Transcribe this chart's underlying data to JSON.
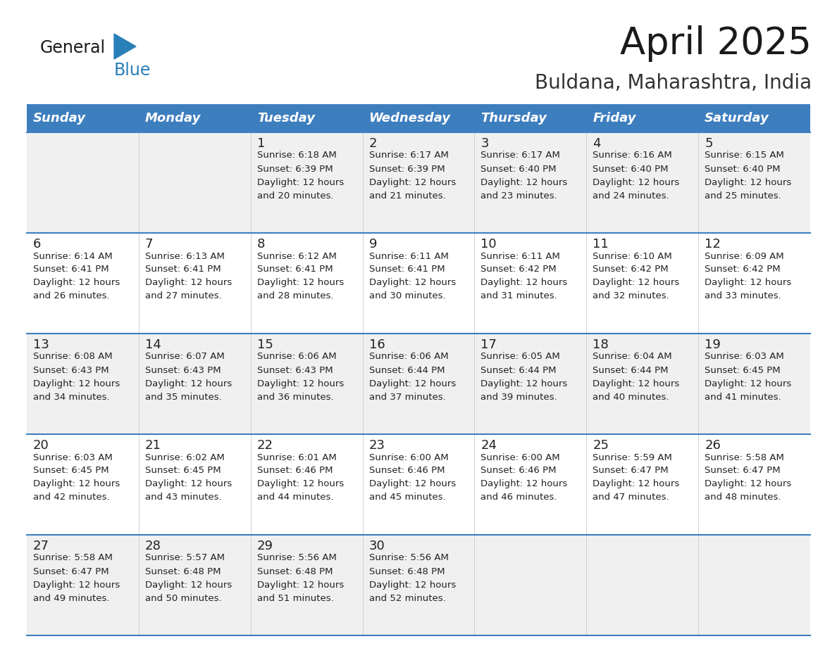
{
  "title": "April 2025",
  "subtitle": "Buldana, Maharashtra, India",
  "header_bg": "#3d7ebf",
  "header_text_color": "#ffffff",
  "row_bg_odd": "#f0f0f0",
  "row_bg_even": "#ffffff",
  "cell_text_color": "#222222",
  "days_of_week": [
    "Sunday",
    "Monday",
    "Tuesday",
    "Wednesday",
    "Thursday",
    "Friday",
    "Saturday"
  ],
  "calendar_data": [
    [
      {
        "day": "",
        "sunrise": "",
        "sunset": "",
        "daylight_min": 0
      },
      {
        "day": "",
        "sunrise": "",
        "sunset": "",
        "daylight_min": 0
      },
      {
        "day": "1",
        "sunrise": "6:18 AM",
        "sunset": "6:39 PM",
        "daylight_min": 20
      },
      {
        "day": "2",
        "sunrise": "6:17 AM",
        "sunset": "6:39 PM",
        "daylight_min": 21
      },
      {
        "day": "3",
        "sunrise": "6:17 AM",
        "sunset": "6:40 PM",
        "daylight_min": 23
      },
      {
        "day": "4",
        "sunrise": "6:16 AM",
        "sunset": "6:40 PM",
        "daylight_min": 24
      },
      {
        "day": "5",
        "sunrise": "6:15 AM",
        "sunset": "6:40 PM",
        "daylight_min": 25
      }
    ],
    [
      {
        "day": "6",
        "sunrise": "6:14 AM",
        "sunset": "6:41 PM",
        "daylight_min": 26
      },
      {
        "day": "7",
        "sunrise": "6:13 AM",
        "sunset": "6:41 PM",
        "daylight_min": 27
      },
      {
        "day": "8",
        "sunrise": "6:12 AM",
        "sunset": "6:41 PM",
        "daylight_min": 28
      },
      {
        "day": "9",
        "sunrise": "6:11 AM",
        "sunset": "6:41 PM",
        "daylight_min": 30
      },
      {
        "day": "10",
        "sunrise": "6:11 AM",
        "sunset": "6:42 PM",
        "daylight_min": 31
      },
      {
        "day": "11",
        "sunrise": "6:10 AM",
        "sunset": "6:42 PM",
        "daylight_min": 32
      },
      {
        "day": "12",
        "sunrise": "6:09 AM",
        "sunset": "6:42 PM",
        "daylight_min": 33
      }
    ],
    [
      {
        "day": "13",
        "sunrise": "6:08 AM",
        "sunset": "6:43 PM",
        "daylight_min": 34
      },
      {
        "day": "14",
        "sunrise": "6:07 AM",
        "sunset": "6:43 PM",
        "daylight_min": 35
      },
      {
        "day": "15",
        "sunrise": "6:06 AM",
        "sunset": "6:43 PM",
        "daylight_min": 36
      },
      {
        "day": "16",
        "sunrise": "6:06 AM",
        "sunset": "6:44 PM",
        "daylight_min": 37
      },
      {
        "day": "17",
        "sunrise": "6:05 AM",
        "sunset": "6:44 PM",
        "daylight_min": 39
      },
      {
        "day": "18",
        "sunrise": "6:04 AM",
        "sunset": "6:44 PM",
        "daylight_min": 40
      },
      {
        "day": "19",
        "sunrise": "6:03 AM",
        "sunset": "6:45 PM",
        "daylight_min": 41
      }
    ],
    [
      {
        "day": "20",
        "sunrise": "6:03 AM",
        "sunset": "6:45 PM",
        "daylight_min": 42
      },
      {
        "day": "21",
        "sunrise": "6:02 AM",
        "sunset": "6:45 PM",
        "daylight_min": 43
      },
      {
        "day": "22",
        "sunrise": "6:01 AM",
        "sunset": "6:46 PM",
        "daylight_min": 44
      },
      {
        "day": "23",
        "sunrise": "6:00 AM",
        "sunset": "6:46 PM",
        "daylight_min": 45
      },
      {
        "day": "24",
        "sunrise": "6:00 AM",
        "sunset": "6:46 PM",
        "daylight_min": 46
      },
      {
        "day": "25",
        "sunrise": "5:59 AM",
        "sunset": "6:47 PM",
        "daylight_min": 47
      },
      {
        "day": "26",
        "sunrise": "5:58 AM",
        "sunset": "6:47 PM",
        "daylight_min": 48
      }
    ],
    [
      {
        "day": "27",
        "sunrise": "5:58 AM",
        "sunset": "6:47 PM",
        "daylight_min": 49
      },
      {
        "day": "28",
        "sunrise": "5:57 AM",
        "sunset": "6:48 PM",
        "daylight_min": 50
      },
      {
        "day": "29",
        "sunrise": "5:56 AM",
        "sunset": "6:48 PM",
        "daylight_min": 51
      },
      {
        "day": "30",
        "sunrise": "5:56 AM",
        "sunset": "6:48 PM",
        "daylight_min": 52
      },
      {
        "day": "",
        "sunrise": "",
        "sunset": "",
        "daylight_min": 0
      },
      {
        "day": "",
        "sunrise": "",
        "sunset": "",
        "daylight_min": 0
      },
      {
        "day": "",
        "sunrise": "",
        "sunset": "",
        "daylight_min": 0
      }
    ]
  ],
  "logo_triangle_color": "#2980b9",
  "logo_black_color": "#1a1a1a",
  "border_line_color": "#3d7ebf",
  "title_fontsize": 38,
  "subtitle_fontsize": 20,
  "header_fontsize": 13,
  "cell_day_fontsize": 13,
  "cell_info_fontsize": 9.5
}
